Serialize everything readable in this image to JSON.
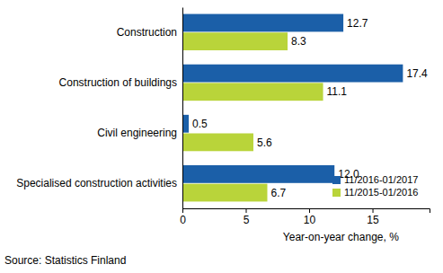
{
  "chart_data": {
    "type": "bar",
    "orientation": "horizontal",
    "categories": [
      "Construction",
      "Construction of buildings",
      "Civil engineering",
      "Specialised construction activities"
    ],
    "series": [
      {
        "name": "11/2016-01/2017",
        "color": "#1b5fa8",
        "values": [
          12.7,
          17.4,
          0.5,
          12.0
        ],
        "value_labels": [
          "12.7",
          "17.4",
          "0.5",
          "12.0"
        ]
      },
      {
        "name": "11/2015-01/2016",
        "color": "#b9d43a",
        "values": [
          8.3,
          11.1,
          5.6,
          6.7
        ],
        "value_labels": [
          "8.3",
          "11.1",
          "5.6",
          "6.7"
        ]
      }
    ],
    "xlabel": "Year-on-year change, %",
    "xlim": [
      0,
      19.5
    ],
    "xticks": [
      0,
      5,
      10,
      15
    ],
    "grid": false,
    "data_labels": true,
    "legend": "lower right",
    "annotations": [
      "Source: Statistics Finland"
    ]
  }
}
